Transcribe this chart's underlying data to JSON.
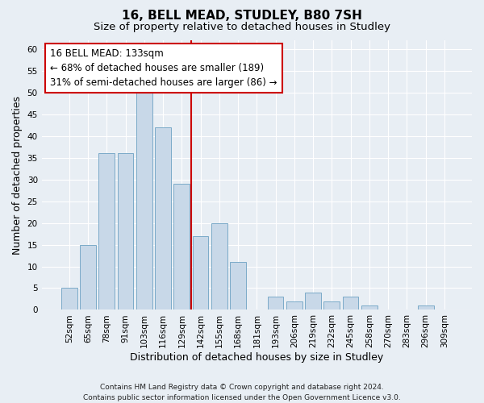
{
  "title1": "16, BELL MEAD, STUDLEY, B80 7SH",
  "title2": "Size of property relative to detached houses in Studley",
  "xlabel": "Distribution of detached houses by size in Studley",
  "ylabel": "Number of detached properties",
  "footnote": "Contains HM Land Registry data © Crown copyright and database right 2024.\nContains public sector information licensed under the Open Government Licence v3.0.",
  "bar_labels": [
    "52sqm",
    "65sqm",
    "78sqm",
    "91sqm",
    "103sqm",
    "116sqm",
    "129sqm",
    "142sqm",
    "155sqm",
    "168sqm",
    "181sqm",
    "193sqm",
    "206sqm",
    "219sqm",
    "232sqm",
    "245sqm",
    "258sqm",
    "270sqm",
    "283sqm",
    "296sqm",
    "309sqm"
  ],
  "bar_heights": [
    5,
    15,
    36,
    36,
    50,
    42,
    29,
    17,
    20,
    11,
    0,
    3,
    2,
    4,
    2,
    3,
    1,
    0,
    0,
    1,
    0
  ],
  "bar_color": "#c8d8e8",
  "bar_edgecolor": "#7baac8",
  "vline_x": 6.5,
  "vline_color": "#cc0000",
  "annotation_text": "16 BELL MEAD: 133sqm\n← 68% of detached houses are smaller (189)\n31% of semi-detached houses are larger (86) →",
  "annotation_box_facecolor": "#ffffff",
  "annotation_box_edgecolor": "#cc0000",
  "ylim": [
    0,
    62
  ],
  "yticks": [
    0,
    5,
    10,
    15,
    20,
    25,
    30,
    35,
    40,
    45,
    50,
    55,
    60
  ],
  "bg_color": "#e8eef4",
  "plot_bg_color": "#e8eef4",
  "grid_color": "#ffffff",
  "title1_fontsize": 11,
  "title2_fontsize": 9.5,
  "xlabel_fontsize": 9,
  "ylabel_fontsize": 9,
  "tick_fontsize": 7.5,
  "annotation_fontsize": 8.5,
  "footnote_fontsize": 6.5
}
